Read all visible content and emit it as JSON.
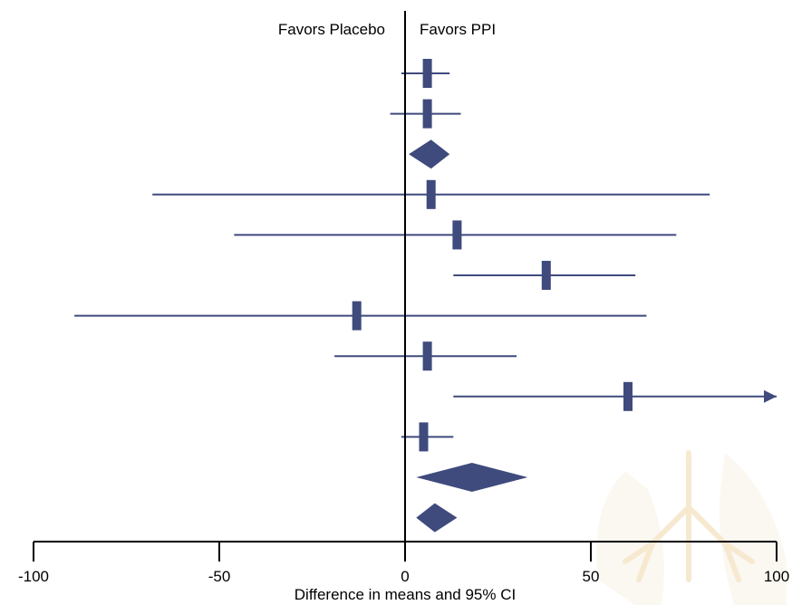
{
  "colors": {
    "marker": "#3f4a7d",
    "axis": "#000000",
    "background": "#ffffff",
    "watermark": "#e8c27a"
  },
  "chart_data": {
    "type": "forest",
    "xlabel": "Difference in means and 95% CI",
    "xlim": [
      -100,
      100
    ],
    "xticks": [
      "-100",
      "-50",
      "0",
      "50",
      "100"
    ],
    "direction_labels": {
      "left": "Favors Placebo",
      "right": "Favors PPI"
    },
    "rows": [
      {
        "kind": "study",
        "estimate": 6,
        "lower": -1,
        "upper": 12
      },
      {
        "kind": "study",
        "estimate": 6,
        "lower": -4,
        "upper": 15
      },
      {
        "kind": "pooled",
        "estimate": 7,
        "lower": 1,
        "upper": 12
      },
      {
        "kind": "study",
        "estimate": 7,
        "lower": -68,
        "upper": 82
      },
      {
        "kind": "study",
        "estimate": 14,
        "lower": -46,
        "upper": 73
      },
      {
        "kind": "study",
        "estimate": 38,
        "lower": 13,
        "upper": 62
      },
      {
        "kind": "study",
        "estimate": -13,
        "lower": -89,
        "upper": 65
      },
      {
        "kind": "study",
        "estimate": 6,
        "lower": -19,
        "upper": 30
      },
      {
        "kind": "study",
        "estimate": 60,
        "lower": 13,
        "upper": 100,
        "upper_truncated": true
      },
      {
        "kind": "study",
        "estimate": 5,
        "lower": -1,
        "upper": 13
      },
      {
        "kind": "pooled",
        "estimate": 18,
        "lower": 3,
        "upper": 33
      },
      {
        "kind": "pooled",
        "estimate": 8,
        "lower": 3,
        "upper": 14
      }
    ]
  }
}
